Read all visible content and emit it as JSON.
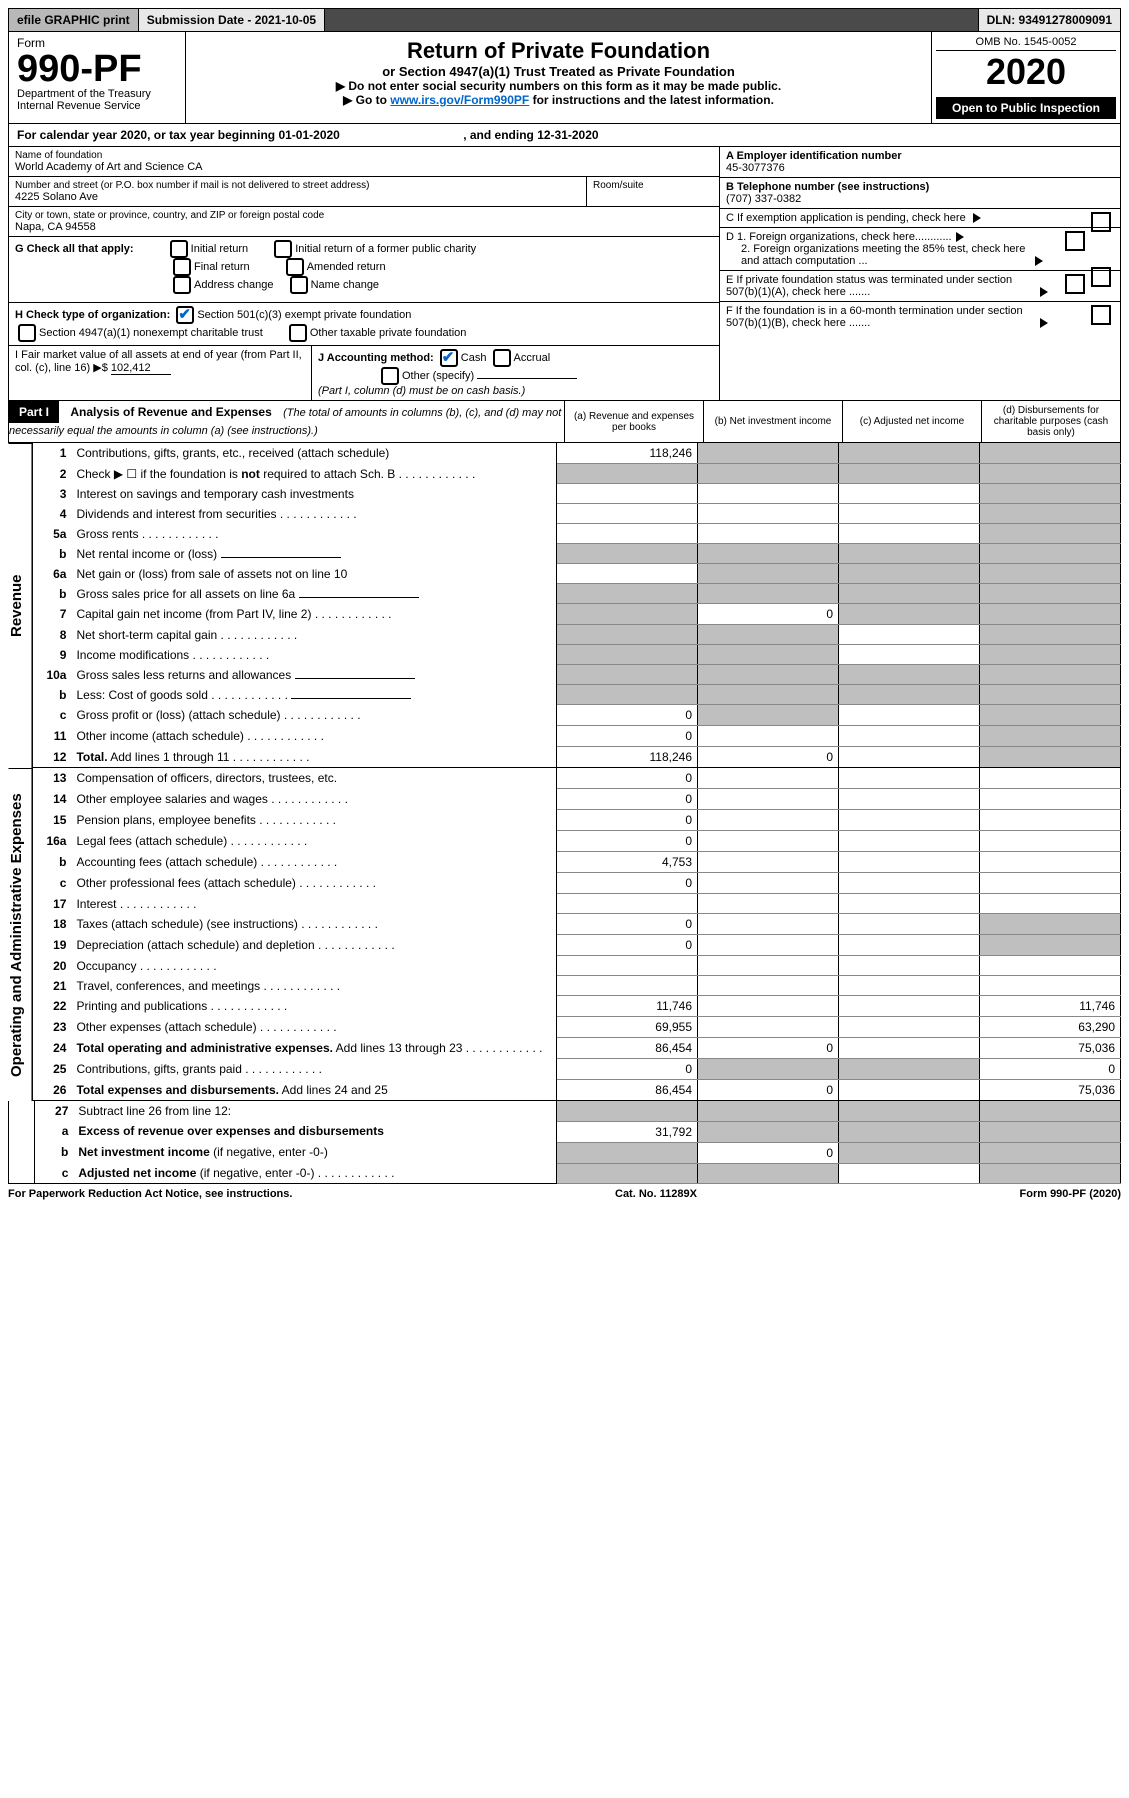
{
  "topbar": {
    "efile": "efile GRAPHIC print",
    "subdate_label": "Submission Date - 2021-10-05",
    "dln": "DLN: 93491278009091"
  },
  "header": {
    "form_word": "Form",
    "form_no": "990-PF",
    "dept": "Department of the Treasury",
    "irs": "Internal Revenue Service",
    "title": "Return of Private Foundation",
    "subtitle": "or Section 4947(a)(1) Trust Treated as Private Foundation",
    "inst1": "▶ Do not enter social security numbers on this form as it may be made public.",
    "inst2_prefix": "▶ Go to ",
    "inst2_link": "www.irs.gov/Form990PF",
    "inst2_suffix": " for instructions and the latest information.",
    "omb": "OMB No. 1545-0052",
    "year": "2020",
    "open": "Open to Public Inspection"
  },
  "calyear": {
    "prefix": "For calendar year 2020, or tax year beginning ",
    "begin": "01-01-2020",
    "mid": " , and ending ",
    "end": "12-31-2020"
  },
  "info": {
    "name_label": "Name of foundation",
    "name": "World Academy of Art and Science CA",
    "addr_label": "Number and street (or P.O. box number if mail is not delivered to street address)",
    "addr": "4225 Solano Ave",
    "room_label": "Room/suite",
    "room": "",
    "city_label": "City or town, state or province, country, and ZIP or foreign postal code",
    "city": "Napa, CA  94558",
    "a_label": "A Employer identification number",
    "a": "45-3077376",
    "b_label": "B Telephone number (see instructions)",
    "b": "(707) 337-0382",
    "c_label": "C If exemption application is pending, check here",
    "d1": "D 1. Foreign organizations, check here............",
    "d2": "2. Foreign organizations meeting the 85% test, check here and attach computation ...",
    "e": "E  If private foundation status was terminated under section 507(b)(1)(A), check here .......",
    "f": "F  If the foundation is in a 60-month termination under section 507(b)(1)(B), check here .......",
    "g_label": "G Check all that apply:",
    "g_opts": [
      "Initial return",
      "Initial return of a former public charity",
      "Final return",
      "Amended return",
      "Address change",
      "Name change"
    ],
    "h_label": "H Check type of organization:",
    "h_opts": [
      "Section 501(c)(3) exempt private foundation",
      "Section 4947(a)(1) nonexempt charitable trust",
      "Other taxable private foundation"
    ],
    "i_label": "I Fair market value of all assets at end of year (from Part II, col. (c), line 16) ▶$ ",
    "i_val": "102,412",
    "j_label": "J Accounting method:",
    "j_cash": "Cash",
    "j_accrual": "Accrual",
    "j_other": "Other (specify)",
    "j_note": "(Part I, column (d) must be on cash basis.)"
  },
  "part1": {
    "label": "Part I",
    "title": "Analysis of Revenue and Expenses",
    "note": "(The total of amounts in columns (b), (c), and (d) may not necessarily equal the amounts in column (a) (see instructions).)",
    "cols": {
      "a": "(a)  Revenue and expenses per books",
      "b": "(b)  Net investment income",
      "c": "(c)  Adjusted net income",
      "d": "(d)  Disbursements for charitable purposes (cash basis only)"
    }
  },
  "sections": {
    "rev": "Revenue",
    "exp": "Operating and Administrative Expenses"
  },
  "rows": [
    {
      "n": "1",
      "d": "Contributions, gifts, grants, etc., received (attach schedule)",
      "a": "118,246",
      "bs": true,
      "cs": true,
      "ds": true
    },
    {
      "n": "2",
      "d": "Check ▶ ☐ if the foundation is <b>not</b> required to attach Sch. B",
      "dots": true,
      "as": true,
      "bs": true,
      "cs": true,
      "ds": true
    },
    {
      "n": "3",
      "d": "Interest on savings and temporary cash investments",
      "ds": true
    },
    {
      "n": "4",
      "d": "Dividends and interest from securities",
      "dots": true,
      "ds": true
    },
    {
      "n": "5a",
      "d": "Gross rents",
      "dots": true,
      "ds": true
    },
    {
      "n": "b",
      "d": "Net rental income or (loss)",
      "under": true,
      "as": true,
      "bs": true,
      "cs": true,
      "ds": true
    },
    {
      "n": "6a",
      "d": "Net gain or (loss) from sale of assets not on line 10",
      "bs": true,
      "cs": true,
      "ds": true
    },
    {
      "n": "b",
      "d": "Gross sales price for all assets on line 6a",
      "under": true,
      "as": true,
      "bs": true,
      "cs": true,
      "ds": true
    },
    {
      "n": "7",
      "d": "Capital gain net income (from Part IV, line 2)",
      "dots": true,
      "as": true,
      "b": "0",
      "cs": true,
      "ds": true
    },
    {
      "n": "8",
      "d": "Net short-term capital gain",
      "dots": true,
      "as": true,
      "bs": true,
      "ds": true
    },
    {
      "n": "9",
      "d": "Income modifications",
      "dots": true,
      "as": true,
      "bs": true,
      "ds": true
    },
    {
      "n": "10a",
      "d": "Gross sales less returns and allowances",
      "under": true,
      "as": true,
      "bs": true,
      "cs": true,
      "ds": true
    },
    {
      "n": "b",
      "d": "Less: Cost of goods sold",
      "dots": true,
      "under": true,
      "as": true,
      "bs": true,
      "cs": true,
      "ds": true
    },
    {
      "n": "c",
      "d": "Gross profit or (loss) (attach schedule)",
      "dots": true,
      "a": "0",
      "bs": true,
      "ds": true
    },
    {
      "n": "11",
      "d": "Other income (attach schedule)",
      "dots": true,
      "a": "0",
      "ds": true
    },
    {
      "n": "12",
      "d": "<b>Total.</b> Add lines 1 through 11",
      "dots": true,
      "a": "118,246",
      "b": "0",
      "ds": true,
      "br": true
    }
  ],
  "exp_rows": [
    {
      "n": "13",
      "d": "Compensation of officers, directors, trustees, etc.",
      "a": "0"
    },
    {
      "n": "14",
      "d": "Other employee salaries and wages",
      "dots": true,
      "a": "0"
    },
    {
      "n": "15",
      "d": "Pension plans, employee benefits",
      "dots": true,
      "a": "0"
    },
    {
      "n": "16a",
      "d": "Legal fees (attach schedule)",
      "dots": true,
      "a": "0"
    },
    {
      "n": "b",
      "d": "Accounting fees (attach schedule)",
      "dots": true,
      "a": "4,753"
    },
    {
      "n": "c",
      "d": "Other professional fees (attach schedule)",
      "dots": true,
      "a": "0"
    },
    {
      "n": "17",
      "d": "Interest",
      "dots": true
    },
    {
      "n": "18",
      "d": "Taxes (attach schedule) (see instructions)",
      "dots": true,
      "a": "0",
      "ds": true
    },
    {
      "n": "19",
      "d": "Depreciation (attach schedule) and depletion",
      "dots": true,
      "a": "0",
      "ds": true
    },
    {
      "n": "20",
      "d": "Occupancy",
      "dots": true
    },
    {
      "n": "21",
      "d": "Travel, conferences, and meetings",
      "dots": true
    },
    {
      "n": "22",
      "d": "Printing and publications",
      "dots": true,
      "a": "11,746",
      "dv": "11,746"
    },
    {
      "n": "23",
      "d": "Other expenses (attach schedule)",
      "dots": true,
      "a": "69,955",
      "dv": "63,290"
    },
    {
      "n": "24",
      "d": "<b>Total operating and administrative expenses.</b> Add lines 13 through 23",
      "dots": true,
      "a": "86,454",
      "b": "0",
      "dv": "75,036"
    },
    {
      "n": "25",
      "d": "Contributions, gifts, grants paid",
      "dots": true,
      "a": "0",
      "bs": true,
      "cs": true,
      "dv": "0"
    },
    {
      "n": "26",
      "d": "<b>Total expenses and disbursements.</b> Add lines 24 and 25",
      "a": "86,454",
      "b": "0",
      "dv": "75,036",
      "br": true
    }
  ],
  "net_rows": [
    {
      "n": "27",
      "d": "Subtract line 26 from line 12:",
      "as": true,
      "bs": true,
      "cs": true,
      "ds": true
    },
    {
      "n": "a",
      "d": "<b>Excess of revenue over expenses and disbursements</b>",
      "a": "31,792",
      "bs": true,
      "cs": true,
      "ds": true
    },
    {
      "n": "b",
      "d": "<b>Net investment income</b> (if negative, enter -0-)",
      "as": true,
      "b": "0",
      "cs": true,
      "ds": true
    },
    {
      "n": "c",
      "d": "<b>Adjusted net income</b> (if negative, enter -0-)",
      "dots": true,
      "as": true,
      "bs": true,
      "ds": true
    }
  ],
  "footer": {
    "left": "For Paperwork Reduction Act Notice, see instructions.",
    "mid": "Cat. No. 11289X",
    "right": "Form 990-PF (2020)"
  }
}
